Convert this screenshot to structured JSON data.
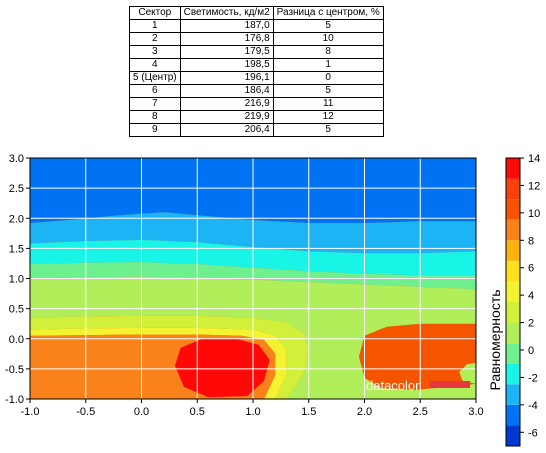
{
  "table": {
    "headers": [
      "Сектор",
      "Светимость, кд/м2",
      "Разница с центром, %"
    ],
    "rows": [
      [
        "1",
        "187,0",
        "5"
      ],
      [
        "2",
        "176,8",
        "10"
      ],
      [
        "3",
        "179,5",
        "8"
      ],
      [
        "4",
        "198,5",
        "1"
      ],
      [
        "5 (Центр)",
        "196,1",
        "0"
      ],
      [
        "6",
        "186,4",
        "5"
      ],
      [
        "7",
        "216,9",
        "11"
      ],
      [
        "8",
        "219,9",
        "12"
      ],
      [
        "9",
        "206,4",
        "5"
      ]
    ]
  },
  "watermark": "datacolor",
  "chart_data": {
    "type": "heatmap",
    "subtype": "contour",
    "xlim": [
      -1.0,
      3.0
    ],
    "ylim": [
      -1.0,
      3.0
    ],
    "xticks": [
      "-1.0",
      "-0.5",
      "0.0",
      "0.5",
      "1.0",
      "1.5",
      "2.0",
      "2.5",
      "3.0"
    ],
    "yticks": [
      "3.0",
      "2.5",
      "2.0",
      "1.5",
      "1.0",
      "0.5",
      "0.0",
      "-0.5",
      "-1.0"
    ],
    "grid": true,
    "colorbar": {
      "label": "Равномерность",
      "ticks": [
        "14",
        "12",
        "10",
        "8",
        "6",
        "4",
        "2",
        "0",
        "-2",
        "-4",
        "-6"
      ],
      "range": [
        -7,
        14
      ],
      "colors": [
        "#0039d1",
        "#0073f5",
        "#1cb4f5",
        "#18f5e6",
        "#6ff08e",
        "#b0ee5a",
        "#d2ef3a",
        "#f3f332",
        "#fde01b",
        "#fdb20e",
        "#f9821a",
        "#f55400",
        "#f93f0a",
        "#fe0808"
      ]
    },
    "regions": [
      {
        "level": "-6",
        "color": "#0039d1",
        "polygons": [
          [
            [
              0.55,
              2.45
            ],
            [
              0.7,
              2.75
            ],
            [
              1.0,
              2.95
            ],
            [
              1.3,
              2.95
            ],
            [
              1.6,
              2.8
            ],
            [
              1.7,
              2.55
            ],
            [
              1.6,
              2.2
            ],
            [
              1.3,
              2.05
            ],
            [
              0.95,
              2.05
            ],
            [
              0.65,
              2.2
            ]
          ]
        ]
      },
      {
        "level": "-4",
        "color": "#0073f5",
        "polygons": [
          [
            [
              -1.0,
              3.0
            ],
            [
              3.0,
              3.0
            ],
            [
              3.0,
              1.95
            ],
            [
              2.5,
              1.95
            ],
            [
              2.0,
              1.92
            ],
            [
              1.5,
              1.92
            ],
            [
              1.0,
              1.97
            ],
            [
              0.5,
              2.05
            ],
            [
              0.2,
              2.1
            ],
            [
              -0.2,
              2.05
            ],
            [
              -0.6,
              1.98
            ],
            [
              -1.0,
              1.92
            ]
          ]
        ]
      },
      {
        "level": "-2",
        "color": "#1cb4f5",
        "polygons": [
          [
            [
              -1.0,
              1.92
            ],
            [
              -0.6,
              1.98
            ],
            [
              -0.2,
              2.05
            ],
            [
              0.2,
              2.1
            ],
            [
              0.5,
              2.05
            ],
            [
              1.0,
              1.97
            ],
            [
              1.5,
              1.92
            ],
            [
              2.0,
              1.92
            ],
            [
              2.5,
              1.95
            ],
            [
              3.0,
              1.95
            ],
            [
              3.0,
              1.45
            ],
            [
              2.5,
              1.42
            ],
            [
              2.0,
              1.42
            ],
            [
              1.5,
              1.45
            ],
            [
              1.0,
              1.52
            ],
            [
              0.5,
              1.6
            ],
            [
              0.0,
              1.64
            ],
            [
              -0.5,
              1.62
            ],
            [
              -1.0,
              1.58
            ]
          ]
        ]
      },
      {
        "level": "0",
        "color": "#18f5e6",
        "polygons": [
          [
            [
              -1.0,
              1.58
            ],
            [
              -0.5,
              1.62
            ],
            [
              0.0,
              1.64
            ],
            [
              0.5,
              1.6
            ],
            [
              1.0,
              1.52
            ],
            [
              1.5,
              1.45
            ],
            [
              2.0,
              1.42
            ],
            [
              2.5,
              1.42
            ],
            [
              3.0,
              1.45
            ],
            [
              3.0,
              1.05
            ],
            [
              2.5,
              1.05
            ],
            [
              2.0,
              1.08
            ],
            [
              1.5,
              1.12
            ],
            [
              1.0,
              1.18
            ],
            [
              0.5,
              1.24
            ],
            [
              0.0,
              1.27
            ],
            [
              -0.5,
              1.26
            ],
            [
              -1.0,
              1.24
            ]
          ]
        ]
      },
      {
        "level": "2",
        "color": "#6ff08e",
        "polygons": [
          [
            [
              -1.0,
              1.24
            ],
            [
              -0.5,
              1.26
            ],
            [
              0.0,
              1.27
            ],
            [
              0.5,
              1.24
            ],
            [
              1.0,
              1.18
            ],
            [
              1.5,
              1.12
            ],
            [
              2.0,
              1.08
            ],
            [
              2.5,
              1.05
            ],
            [
              3.0,
              1.05
            ],
            [
              3.0,
              0.82
            ],
            [
              2.5,
              0.86
            ],
            [
              2.0,
              0.9
            ],
            [
              1.5,
              0.94
            ],
            [
              1.0,
              0.98
            ],
            [
              0.5,
              1.01
            ],
            [
              0.0,
              1.03
            ],
            [
              -0.5,
              1.02
            ],
            [
              -1.0,
              1.0
            ]
          ]
        ]
      },
      {
        "level": "4",
        "color": "#b0ee5a",
        "polygons": [
          [
            [
              -1.0,
              1.0
            ],
            [
              -0.5,
              1.02
            ],
            [
              0.0,
              1.03
            ],
            [
              0.5,
              1.01
            ],
            [
              1.0,
              0.98
            ],
            [
              1.5,
              0.94
            ],
            [
              2.0,
              0.9
            ],
            [
              2.5,
              0.86
            ],
            [
              3.0,
              0.82
            ],
            [
              3.0,
              0.25
            ],
            [
              2.5,
              0.25
            ],
            [
              2.2,
              0.2
            ],
            [
              2.0,
              0.05
            ],
            [
              1.95,
              -0.3
            ],
            [
              2.0,
              -0.65
            ],
            [
              2.15,
              -0.82
            ],
            [
              2.45,
              -0.85
            ],
            [
              2.75,
              -0.8
            ],
            [
              3.0,
              -0.75
            ],
            [
              3.0,
              -1.0
            ],
            [
              1.3,
              -1.0
            ],
            [
              1.45,
              -0.6
            ],
            [
              1.5,
              -0.2
            ],
            [
              1.45,
              0.1
            ],
            [
              1.3,
              0.27
            ],
            [
              1.0,
              0.35
            ],
            [
              0.5,
              0.38
            ],
            [
              0.0,
              0.38
            ],
            [
              -0.5,
              0.37
            ],
            [
              -1.0,
              0.35
            ]
          ]
        ]
      },
      {
        "level": "6",
        "color": "#d2ef3a",
        "polygons": [
          [
            [
              -1.0,
              0.35
            ],
            [
              -0.5,
              0.37
            ],
            [
              0.0,
              0.38
            ],
            [
              0.5,
              0.38
            ],
            [
              1.0,
              0.35
            ],
            [
              1.3,
              0.27
            ],
            [
              1.45,
              0.1
            ],
            [
              1.5,
              -0.2
            ],
            [
              1.45,
              -0.6
            ],
            [
              1.3,
              -1.0
            ],
            [
              1.2,
              -1.0
            ],
            [
              1.3,
              -0.6
            ],
            [
              1.3,
              -0.2
            ],
            [
              1.2,
              0.05
            ],
            [
              1.0,
              0.15
            ],
            [
              0.5,
              0.18
            ],
            [
              0.0,
              0.18
            ],
            [
              -0.5,
              0.17
            ],
            [
              -1.0,
              0.15
            ]
          ]
        ]
      },
      {
        "level": "8",
        "color": "#f3f332",
        "polygons": [
          [
            [
              -1.0,
              0.15
            ],
            [
              -0.5,
              0.17
            ],
            [
              0.0,
              0.18
            ],
            [
              0.5,
              0.18
            ],
            [
              1.0,
              0.15
            ],
            [
              1.2,
              0.05
            ],
            [
              1.3,
              -0.2
            ],
            [
              1.3,
              -0.6
            ],
            [
              1.2,
              -1.0
            ],
            [
              1.1,
              -1.0
            ],
            [
              1.2,
              -0.6
            ],
            [
              1.2,
              -0.25
            ],
            [
              1.1,
              -0.02
            ],
            [
              0.9,
              0.05
            ],
            [
              0.5,
              0.07
            ],
            [
              0.0,
              0.07
            ],
            [
              -0.5,
              0.06
            ],
            [
              -1.0,
              0.05
            ]
          ]
        ]
      },
      {
        "level": "10",
        "color": "#f9821a",
        "polygons": [
          [
            [
              -1.0,
              0.05
            ],
            [
              -0.5,
              0.06
            ],
            [
              0.0,
              0.07
            ],
            [
              0.5,
              0.07
            ],
            [
              0.9,
              0.05
            ],
            [
              1.1,
              -0.02
            ],
            [
              1.2,
              -0.25
            ],
            [
              1.2,
              -0.6
            ],
            [
              1.1,
              -1.0
            ],
            [
              -1.0,
              -1.0
            ]
          ]
        ]
      },
      {
        "level": "12",
        "color": "#fe0808",
        "polygons": [
          [
            [
              0.3,
              -0.45
            ],
            [
              0.35,
              -0.15
            ],
            [
              0.55,
              0.0
            ],
            [
              0.85,
              0.0
            ],
            [
              1.05,
              -0.1
            ],
            [
              1.15,
              -0.35
            ],
            [
              1.1,
              -0.7
            ],
            [
              0.95,
              -0.95
            ],
            [
              0.6,
              -0.97
            ],
            [
              0.38,
              -0.8
            ]
          ]
        ]
      },
      {
        "level": "4",
        "color": "#b0ee5a",
        "polygons": [
          [
            [
              3.0,
              -0.75
            ],
            [
              2.88,
              -0.7
            ],
            [
              2.85,
              -0.55
            ],
            [
              2.92,
              -0.42
            ],
            [
              3.0,
              -0.4
            ]
          ]
        ]
      }
    ]
  }
}
